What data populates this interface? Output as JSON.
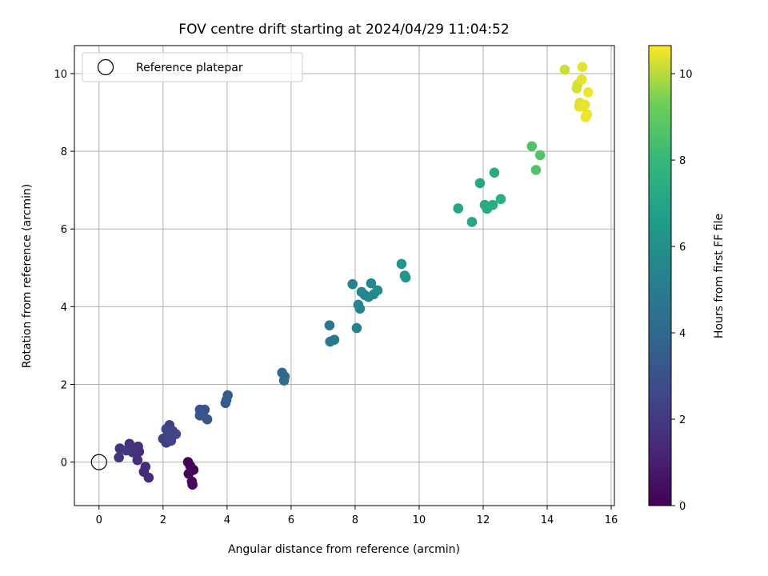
{
  "chart_data": {
    "type": "scatter",
    "title": "FOV centre drift starting at 2024/04/29 11:04:52",
    "xlabel": "Angular distance from reference (arcmin)",
    "ylabel": "Rotation from reference (arcmin)",
    "xlim": [
      -0.77,
      16.1
    ],
    "ylim": [
      -1.12,
      10.72
    ],
    "xticks": [
      0,
      2,
      4,
      6,
      8,
      10,
      12,
      14,
      16
    ],
    "yticks": [
      0,
      2,
      4,
      6,
      8,
      10
    ],
    "grid": true,
    "legend": {
      "placement": "top-left",
      "label": "Reference platepar",
      "marker": "open-circle"
    },
    "reference_point": {
      "x": 0,
      "y": 0
    },
    "colorbar": {
      "label": "Hours from first FF file",
      "colormap": "viridis",
      "range": [
        0,
        10.65
      ],
      "ticks": [
        0,
        2,
        4,
        6,
        8,
        10
      ]
    },
    "points": [
      {
        "x": 2.78,
        "y": 0.0,
        "t": 0.05
      },
      {
        "x": 2.85,
        "y": -0.1,
        "t": 0.1
      },
      {
        "x": 2.95,
        "y": -0.2,
        "t": 0.15
      },
      {
        "x": 2.8,
        "y": -0.3,
        "t": 0.2
      },
      {
        "x": 2.9,
        "y": -0.5,
        "t": 0.25
      },
      {
        "x": 2.92,
        "y": -0.58,
        "t": 0.3
      },
      {
        "x": 1.55,
        "y": -0.4,
        "t": 1.4
      },
      {
        "x": 1.45,
        "y": -0.12,
        "t": 1.45
      },
      {
        "x": 1.4,
        "y": -0.25,
        "t": 1.5
      },
      {
        "x": 1.25,
        "y": 0.27,
        "t": 1.55
      },
      {
        "x": 1.2,
        "y": 0.05,
        "t": 1.6
      },
      {
        "x": 1.22,
        "y": 0.4,
        "t": 1.65
      },
      {
        "x": 0.95,
        "y": 0.47,
        "t": 1.7
      },
      {
        "x": 1.05,
        "y": 0.25,
        "t": 1.75
      },
      {
        "x": 0.65,
        "y": 0.35,
        "t": 1.8
      },
      {
        "x": 0.62,
        "y": 0.12,
        "t": 1.85
      },
      {
        "x": 0.85,
        "y": 0.3,
        "t": 1.9
      },
      {
        "x": 2.0,
        "y": 0.6,
        "t": 2.1
      },
      {
        "x": 2.1,
        "y": 0.5,
        "t": 2.15
      },
      {
        "x": 2.15,
        "y": 0.7,
        "t": 2.2
      },
      {
        "x": 2.2,
        "y": 0.95,
        "t": 2.25
      },
      {
        "x": 2.25,
        "y": 0.55,
        "t": 2.3
      },
      {
        "x": 2.3,
        "y": 0.8,
        "t": 2.35
      },
      {
        "x": 2.1,
        "y": 0.85,
        "t": 2.4
      },
      {
        "x": 2.4,
        "y": 0.72,
        "t": 2.45
      },
      {
        "x": 2.18,
        "y": 0.62,
        "t": 2.5
      },
      {
        "x": 3.15,
        "y": 1.35,
        "t": 3.0
      },
      {
        "x": 3.25,
        "y": 1.2,
        "t": 3.05
      },
      {
        "x": 3.3,
        "y": 1.35,
        "t": 3.1
      },
      {
        "x": 3.15,
        "y": 1.2,
        "t": 3.15
      },
      {
        "x": 3.38,
        "y": 1.1,
        "t": 3.2
      },
      {
        "x": 3.95,
        "y": 1.52,
        "t": 3.3
      },
      {
        "x": 4.02,
        "y": 1.72,
        "t": 3.35
      },
      {
        "x": 3.98,
        "y": 1.6,
        "t": 3.4
      },
      {
        "x": 5.72,
        "y": 2.3,
        "t": 4.0
      },
      {
        "x": 5.8,
        "y": 2.2,
        "t": 4.05
      },
      {
        "x": 5.78,
        "y": 2.1,
        "t": 4.1
      },
      {
        "x": 7.2,
        "y": 3.52,
        "t": 4.7
      },
      {
        "x": 7.22,
        "y": 3.1,
        "t": 4.75
      },
      {
        "x": 7.35,
        "y": 3.15,
        "t": 4.8
      },
      {
        "x": 7.92,
        "y": 4.58,
        "t": 5.3
      },
      {
        "x": 8.05,
        "y": 3.45,
        "t": 5.35
      },
      {
        "x": 8.1,
        "y": 4.05,
        "t": 5.4
      },
      {
        "x": 8.15,
        "y": 3.95,
        "t": 5.45
      },
      {
        "x": 8.2,
        "y": 4.38,
        "t": 5.5
      },
      {
        "x": 8.3,
        "y": 4.3,
        "t": 5.55
      },
      {
        "x": 8.42,
        "y": 4.25,
        "t": 5.6
      },
      {
        "x": 8.5,
        "y": 4.6,
        "t": 5.65
      },
      {
        "x": 8.58,
        "y": 4.32,
        "t": 5.7
      },
      {
        "x": 8.7,
        "y": 4.42,
        "t": 5.75
      },
      {
        "x": 9.45,
        "y": 5.1,
        "t": 6.2
      },
      {
        "x": 9.55,
        "y": 4.8,
        "t": 6.25
      },
      {
        "x": 9.58,
        "y": 4.75,
        "t": 6.3
      },
      {
        "x": 11.22,
        "y": 6.53,
        "t": 7.1
      },
      {
        "x": 11.65,
        "y": 6.18,
        "t": 7.15
      },
      {
        "x": 11.9,
        "y": 7.18,
        "t": 7.2
      },
      {
        "x": 12.05,
        "y": 6.62,
        "t": 7.25
      },
      {
        "x": 12.12,
        "y": 6.52,
        "t": 7.3
      },
      {
        "x": 12.3,
        "y": 6.62,
        "t": 7.35
      },
      {
        "x": 12.35,
        "y": 7.45,
        "t": 7.4
      },
      {
        "x": 12.55,
        "y": 6.77,
        "t": 7.45
      },
      {
        "x": 13.52,
        "y": 8.13,
        "t": 8.6
      },
      {
        "x": 13.65,
        "y": 7.52,
        "t": 8.65
      },
      {
        "x": 13.78,
        "y": 7.9,
        "t": 8.7
      },
      {
        "x": 14.55,
        "y": 10.1,
        "t": 10.2
      },
      {
        "x": 14.92,
        "y": 9.62,
        "t": 10.25
      },
      {
        "x": 14.95,
        "y": 9.72,
        "t": 10.3
      },
      {
        "x": 15.02,
        "y": 9.25,
        "t": 10.35
      },
      {
        "x": 15.0,
        "y": 9.15,
        "t": 10.4
      },
      {
        "x": 15.08,
        "y": 9.85,
        "t": 10.42
      },
      {
        "x": 15.1,
        "y": 10.17,
        "t": 10.44
      },
      {
        "x": 15.12,
        "y": 9.15,
        "t": 10.46
      },
      {
        "x": 15.18,
        "y": 9.2,
        "t": 10.48
      },
      {
        "x": 15.2,
        "y": 8.88,
        "t": 10.5
      },
      {
        "x": 15.25,
        "y": 8.95,
        "t": 10.52
      },
      {
        "x": 15.28,
        "y": 9.52,
        "t": 10.55
      }
    ]
  }
}
